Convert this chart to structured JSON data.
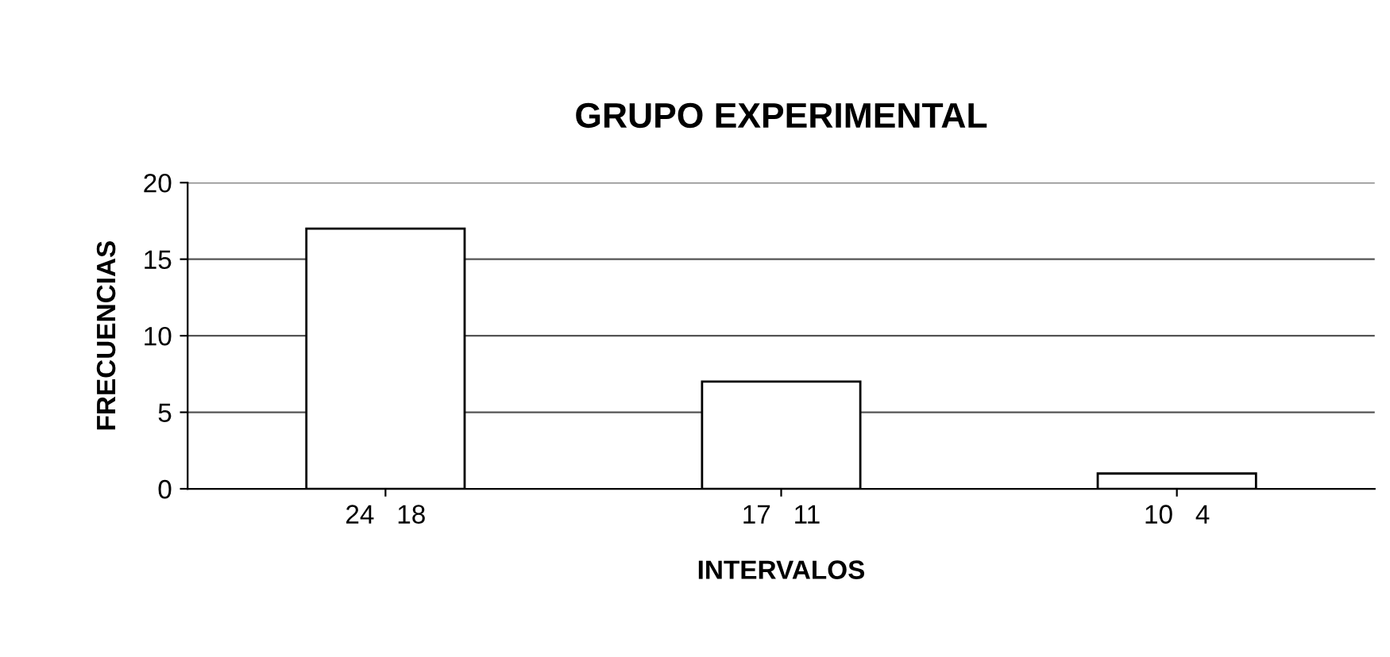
{
  "chart_data": {
    "type": "bar",
    "title": "GRUPO EXPERIMENTAL",
    "xlabel": "INTERVALOS",
    "ylabel": "FRECUENCIAS",
    "categories": [
      "24   18",
      "17   11",
      "10   4"
    ],
    "values": [
      17,
      7,
      1
    ],
    "color": "#ffffff",
    "ylim": [
      0,
      20
    ],
    "yticks": [
      0,
      5,
      10,
      15,
      20
    ],
    "grid": "y",
    "legend": false
  }
}
